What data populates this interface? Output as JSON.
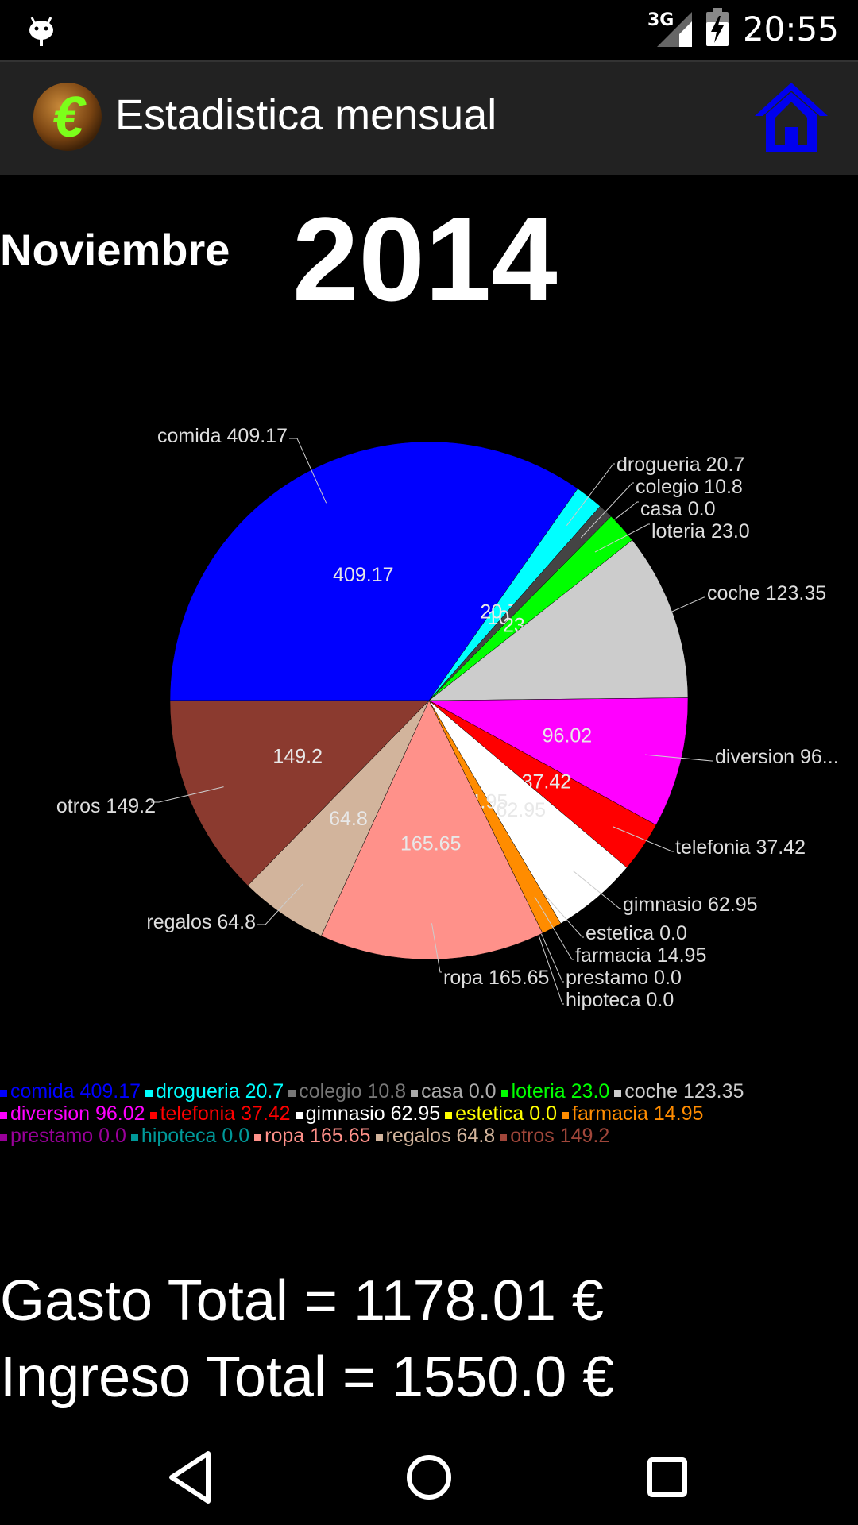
{
  "status_bar": {
    "network": "3G",
    "time": "20:55"
  },
  "action_bar": {
    "title": "Estadistica mensual",
    "icons": {
      "app": "euro-coin-icon",
      "home": "home-icon"
    }
  },
  "header": {
    "month": "Noviembre",
    "year": "2014"
  },
  "chart_data": {
    "type": "pie",
    "start_angle_deg": 180,
    "slices": [
      {
        "label": "comida",
        "value": 409.17,
        "outer_label": "comida 409.17",
        "inner_label": "409.17",
        "color": "#0000ff",
        "legend_color": "#0000ff"
      },
      {
        "label": "drogueria",
        "value": 20.7,
        "outer_label": "drogueria 20.7",
        "inner_label": "20.7",
        "color": "#00ffff",
        "legend_color": "#00ffff"
      },
      {
        "label": "colegio",
        "value": 10.8,
        "outer_label": "colegio 10.8",
        "inner_label": "10.8",
        "color": "#444444",
        "legend_color": "#777777"
      },
      {
        "label": "casa",
        "value": 0.0,
        "outer_label": "casa 0.0",
        "inner_label": "",
        "color": "#888888",
        "legend_color": "#aaaaaa"
      },
      {
        "label": "loteria",
        "value": 23.0,
        "outer_label": "loteria 23.0",
        "inner_label": "23",
        "color": "#00ff00",
        "legend_color": "#00ff00"
      },
      {
        "label": "coche",
        "value": 123.35,
        "outer_label": "coche 123.35",
        "inner_label": "",
        "color": "#cccccc",
        "legend_color": "#cccccc"
      },
      {
        "label": "diversion",
        "value": 96.02,
        "outer_label": "diversion 96...",
        "inner_label": "96.02",
        "color": "#ff00ff",
        "legend_color": "#ff00ff"
      },
      {
        "label": "telefonia",
        "value": 37.42,
        "outer_label": "telefonia 37.42",
        "inner_label": "37.42",
        "color": "#ff0000",
        "legend_color": "#ff0000"
      },
      {
        "label": "gimnasio",
        "value": 62.95,
        "outer_label": "gimnasio 62.95",
        "inner_label": "62.95",
        "color": "#ffffff",
        "legend_color": "#ffffff"
      },
      {
        "label": "estetica",
        "value": 0.0,
        "outer_label": "estetica 0.0",
        "inner_label": "",
        "color": "#ffff00",
        "legend_color": "#ffff00"
      },
      {
        "label": "farmacia",
        "value": 14.95,
        "outer_label": "farmacia 14.95",
        "inner_label": "14.95",
        "color": "#ff8c00",
        "legend_color": "#ff8c00"
      },
      {
        "label": "prestamo",
        "value": 0.0,
        "outer_label": "prestamo 0.0",
        "inner_label": "",
        "color": "#990099",
        "legend_color": "#990099"
      },
      {
        "label": "hipoteca",
        "value": 0.0,
        "outer_label": "hipoteca 0.0",
        "inner_label": "",
        "color": "#009999",
        "legend_color": "#009999"
      },
      {
        "label": "ropa",
        "value": 165.65,
        "outer_label": "ropa 165.65",
        "inner_label": "165.65",
        "color": "#ff918a",
        "legend_color": "#ff918a"
      },
      {
        "label": "regalos",
        "value": 64.8,
        "outer_label": "regalos 64.8",
        "inner_label": "64.8",
        "color": "#d2b49c",
        "legend_color": "#d2b49c"
      },
      {
        "label": "otros",
        "value": 149.2,
        "outer_label": "otros 149.2",
        "inner_label": "149.2",
        "color": "#8b3a2f",
        "legend_color": "#a0463a"
      }
    ]
  },
  "legend": {
    "rows": [
      [
        {
          "text": "comida 409.17",
          "color": "#0000ff"
        },
        {
          "text": "drogueria 20.7",
          "color": "#00ffff"
        },
        {
          "text": "colegio 10.8",
          "color": "#777777"
        },
        {
          "text": "casa 0.0",
          "color": "#aaaaaa"
        },
        {
          "text": "loteria 23.0",
          "color": "#00ff00"
        },
        {
          "text": "coche 123.35",
          "color": "#cccccc"
        }
      ],
      [
        {
          "text": "diversion 96.02",
          "color": "#ff00ff"
        },
        {
          "text": "telefonia 37.42",
          "color": "#ff0000"
        },
        {
          "text": "gimnasio 62.95",
          "color": "#ffffff"
        },
        {
          "text": "estetica 0.0",
          "color": "#ffff00"
        },
        {
          "text": "farmacia 14.95",
          "color": "#ff8c00"
        }
      ],
      [
        {
          "text": "prestamo 0.0",
          "color": "#990099"
        },
        {
          "text": "hipoteca 0.0",
          "color": "#009999"
        },
        {
          "text": "ropa 165.65",
          "color": "#ff918a"
        },
        {
          "text": "regalos 64.8",
          "color": "#d2b49c"
        },
        {
          "text": "otros 149.2",
          "color": "#a0463a"
        }
      ]
    ]
  },
  "totals": {
    "gasto": "Gasto Total = 1178.01 €",
    "ingreso": "Ingreso Total = 1550.0 €"
  },
  "nav_bar": {
    "icons": [
      "back-icon",
      "home-circle-icon",
      "recents-icon"
    ]
  }
}
